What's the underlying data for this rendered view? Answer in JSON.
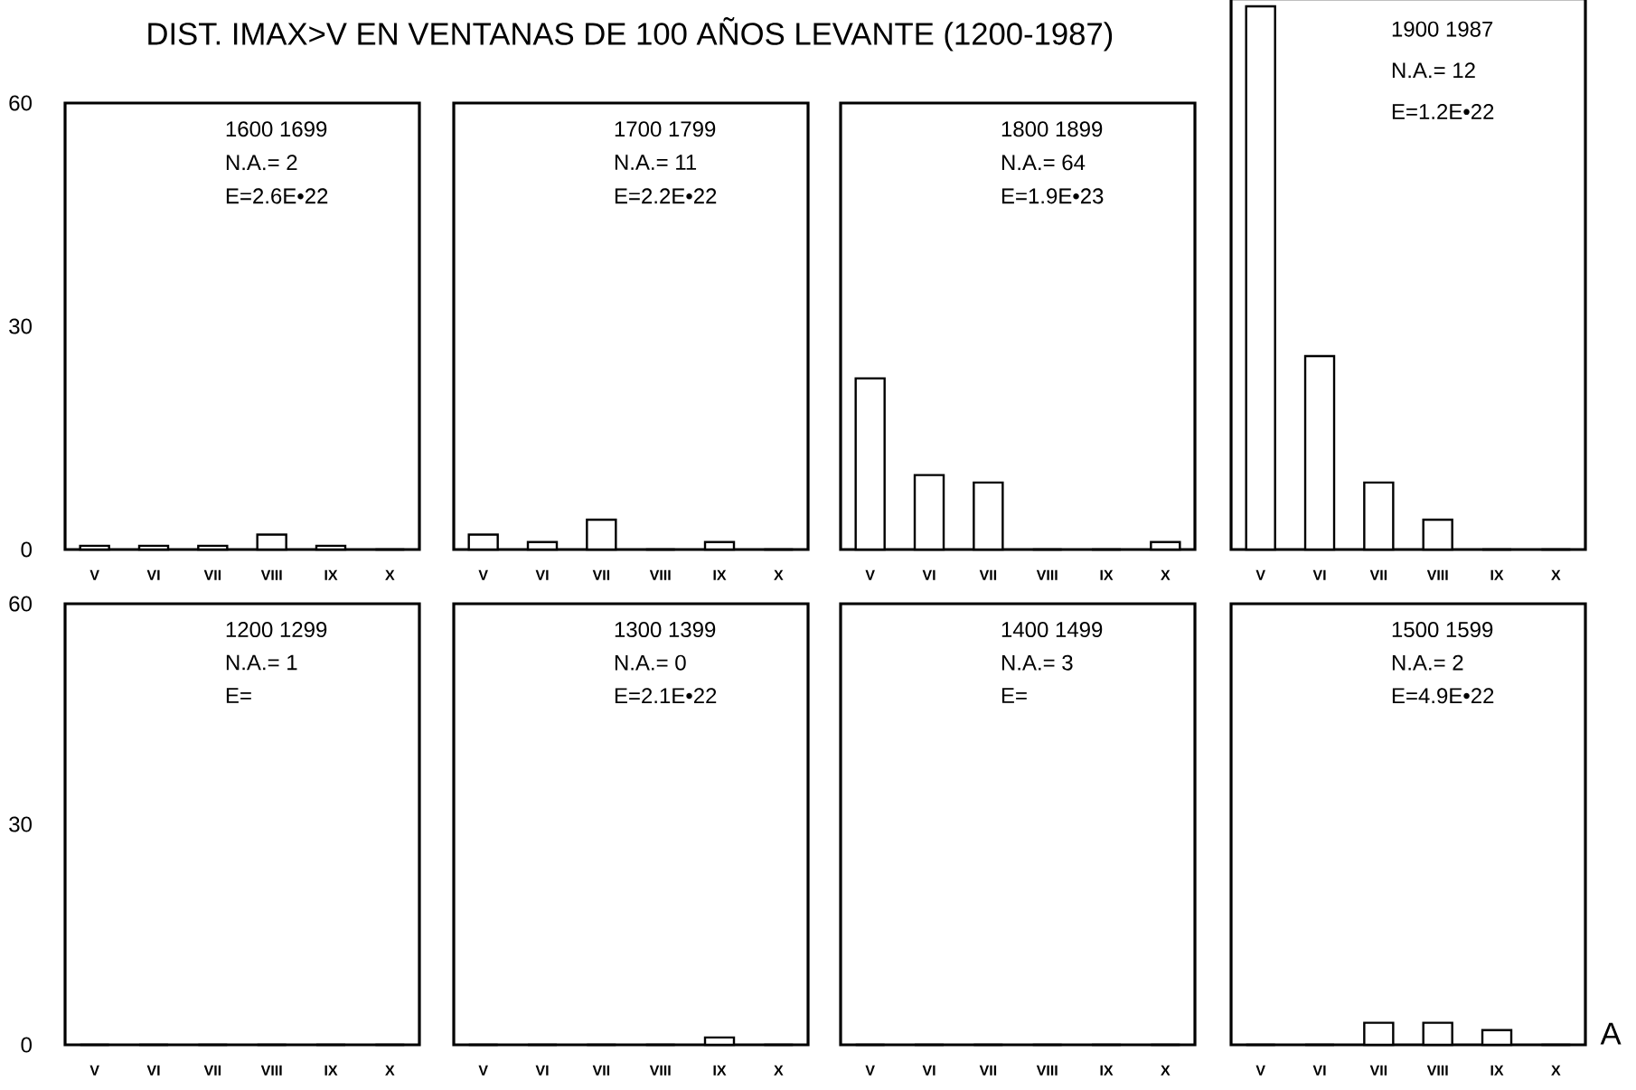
{
  "chart_data": [
    {
      "type": "bar",
      "title": "DIST. IMAX>V EN VENTANAS DE 100 AÑOS LEVANTE (1200-1987)",
      "categories": [
        "V",
        "VI",
        "VII",
        "VIII",
        "IX",
        "X"
      ],
      "values": [
        0.5,
        0.5,
        0.5,
        2,
        0.5,
        0
      ],
      "color": "#000000",
      "ylim": [
        0,
        60
      ],
      "yticks": [
        0,
        30,
        60
      ],
      "annotations": [
        "1600 1699",
        "N.A.= 2",
        "E=2.6E•22"
      ]
    },
    {
      "type": "bar",
      "categories": [
        "V",
        "VI",
        "VII",
        "VIII",
        "IX",
        "X"
      ],
      "values": [
        2,
        1,
        4,
        0,
        1,
        0
      ],
      "color": "#000000",
      "ylim": [
        0,
        60
      ],
      "yticks": [
        0,
        30,
        60
      ],
      "tick_labels": "x",
      "annotations": [
        "1700 1799",
        "N.A.= 11",
        "E=2.2E•22"
      ]
    },
    {
      "type": "bar",
      "categories": [
        "V",
        "VI",
        "VII",
        "VIII",
        "IX",
        "X"
      ],
      "values": [
        23,
        10,
        9,
        0,
        0,
        1
      ],
      "color": "#000000",
      "ylim": [
        0,
        60
      ],
      "yticks": [
        0,
        30,
        60
      ],
      "tick_labels": "x",
      "annotations": [
        "1800 1899",
        "N.A.= 64",
        "E=1.9E•23"
      ]
    },
    {
      "type": "bar",
      "categories": [
        "V",
        "VI",
        "VII",
        "VIII",
        "IX",
        "X"
      ],
      "values": [
        73,
        26,
        9,
        4,
        0,
        0
      ],
      "color": "#000000",
      "ylim": [
        0,
        74
      ],
      "yticks": [
        0,
        30,
        60
      ],
      "tick_labels": "x",
      "annotations": [
        "1900 1987",
        "N.A.= 12",
        "E=1.2E•22"
      ]
    },
    {
      "type": "bar",
      "categories": [
        "V",
        "VI",
        "VII",
        "VIII",
        "IX",
        "X"
      ],
      "values": [
        0,
        0,
        0,
        0,
        0,
        0
      ],
      "color": "#000000",
      "ylim": [
        0,
        60
      ],
      "yticks": [
        0,
        30,
        60
      ],
      "annotations": [
        "1200 1299",
        "N.A.= 1",
        "E="
      ]
    },
    {
      "type": "bar",
      "categories": [
        "V",
        "VI",
        "VII",
        "VIII",
        "IX",
        "X"
      ],
      "values": [
        0,
        0,
        0,
        0,
        1,
        0
      ],
      "color": "#000000",
      "ylim": [
        0,
        60
      ],
      "yticks": [
        0,
        30,
        60
      ],
      "tick_labels": "x",
      "annotations": [
        "1300 1399",
        "N.A.= 0",
        "E=2.1E•22"
      ]
    },
    {
      "type": "bar",
      "categories": [
        "V",
        "VI",
        "VII",
        "VIII",
        "IX",
        "X"
      ],
      "values": [
        0,
        0,
        0,
        0,
        0,
        0
      ],
      "color": "#000000",
      "ylim": [
        0,
        60
      ],
      "yticks": [
        0,
        30,
        60
      ],
      "tick_labels": "x",
      "annotations": [
        "1400 1499",
        "N.A.= 3",
        "E="
      ]
    },
    {
      "type": "bar",
      "categories": [
        "V",
        "VI",
        "VII",
        "VIII",
        "IX",
        "X"
      ],
      "values": [
        0,
        0,
        3,
        3,
        2,
        0
      ],
      "color": "#000000",
      "ylim": [
        0,
        60
      ],
      "yticks": [
        0,
        30,
        60
      ],
      "tick_labels": "x",
      "annotations": [
        "1500 1599",
        "N.A.= 2",
        "E=4.9E•22",
        "A"
      ]
    }
  ]
}
